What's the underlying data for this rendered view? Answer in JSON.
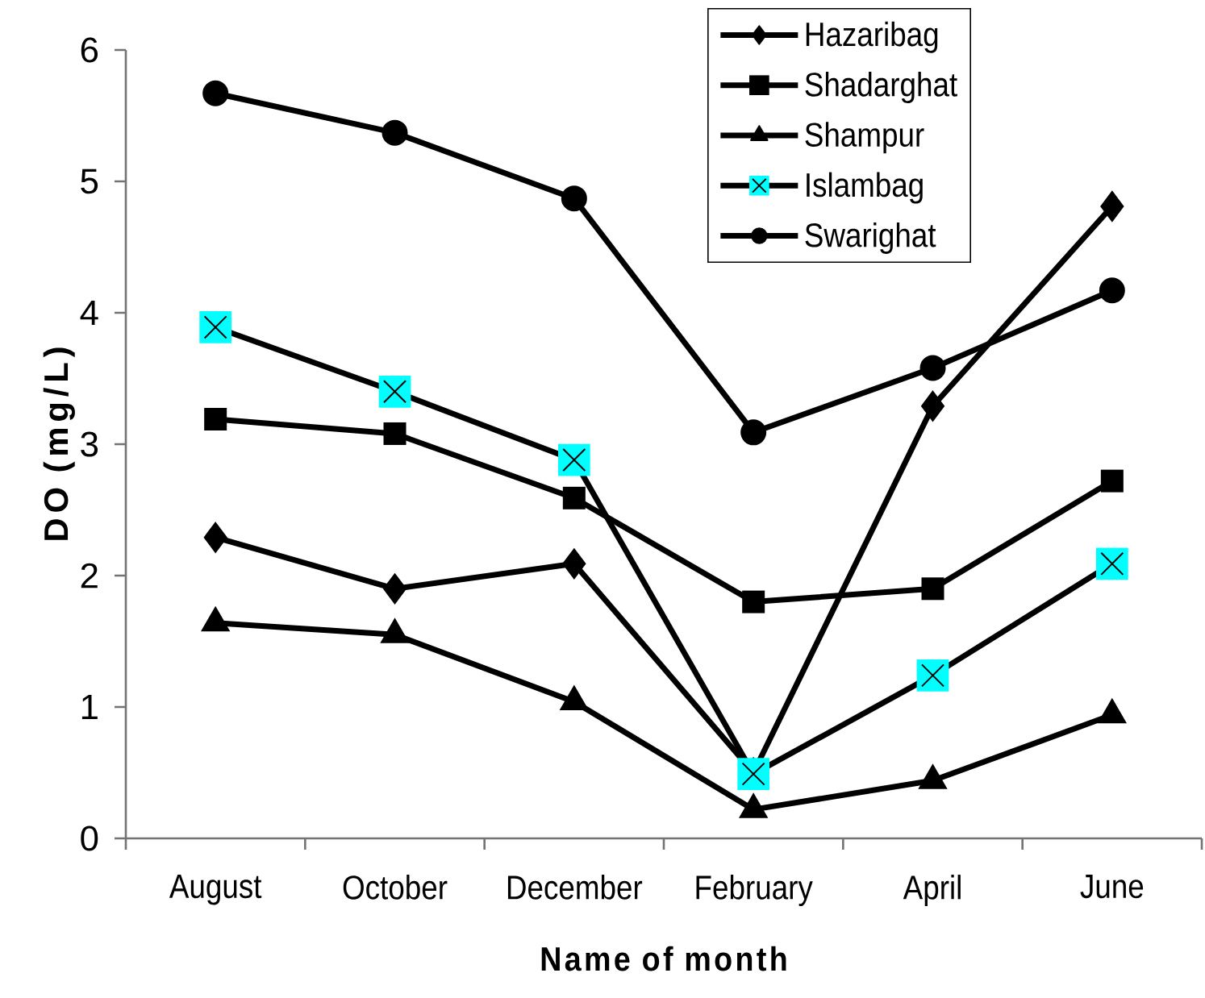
{
  "chart_data": {
    "type": "line",
    "xlabel": "Name of month",
    "ylabel": "DO (mg/L)",
    "categories": [
      "August",
      "October",
      "December",
      "February",
      "April",
      "June"
    ],
    "series": [
      {
        "name": "Hazaribag",
        "color": "#000000",
        "marker": "diamond",
        "values": [
          2.29,
          1.9,
          2.09,
          0.5,
          3.29,
          4.81
        ]
      },
      {
        "name": "Shadarghat",
        "color": "#000000",
        "marker": "square",
        "values": [
          3.19,
          3.08,
          2.59,
          1.8,
          1.9,
          2.72
        ]
      },
      {
        "name": "Shampur",
        "color": "#000000",
        "marker": "triangle",
        "values": [
          1.64,
          1.55,
          1.04,
          0.22,
          0.44,
          0.94
        ]
      },
      {
        "name": "Islambag",
        "color": "#000000",
        "colors": [
          "#00ffff",
          "#00ffff",
          "#00ffff",
          "#00ffff",
          "#00ffff",
          "#00ffff"
        ],
        "marker": "square",
        "values": [
          3.89,
          3.4,
          2.88,
          0.49,
          1.24,
          2.09
        ]
      },
      {
        "name": "Swarighat",
        "color": "#000000",
        "marker": "circle",
        "values": [
          5.67,
          5.37,
          4.87,
          3.09,
          3.58,
          4.17
        ]
      }
    ],
    "ylim": [
      0,
      6
    ],
    "yticks": [
      0,
      1,
      2,
      3,
      4,
      5,
      6
    ],
    "legend": "top right",
    "line_style": "solid"
  }
}
